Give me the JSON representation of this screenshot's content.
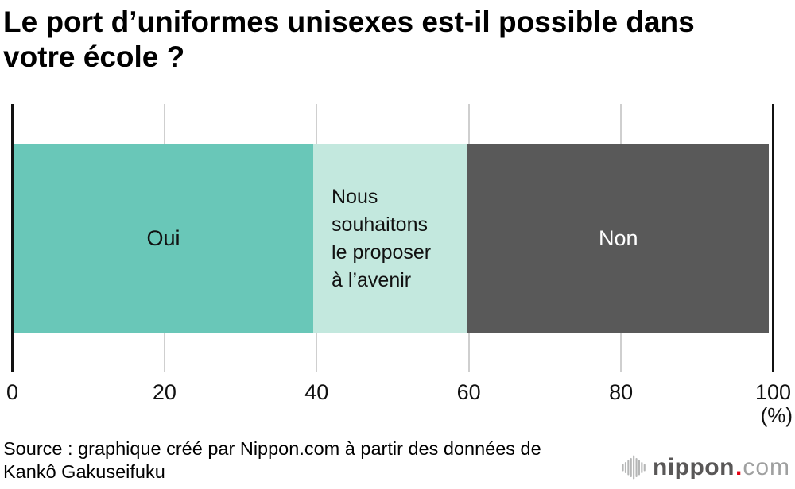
{
  "title_lines": {
    "line1": "Le port d’uniformes unisexes est-il possible dans",
    "line2": "votre école ?"
  },
  "chart_data": {
    "type": "bar",
    "orientation": "horizontal-stacked",
    "title": "Le port d’uniformes unisexes est-il possible dans votre école ?",
    "unit": "%",
    "xlim": [
      0,
      100
    ],
    "grid": true,
    "axis_color": "#111111",
    "grid_color": "#cfcfcf",
    "segments": [
      {
        "label": "Oui",
        "value": 39.4,
        "color": "#69c7b8",
        "text_color": "#111111"
      },
      {
        "label": "Nous souhaitons le proposer à l’avenir",
        "value": 20.3,
        "color": "#c3e8de",
        "text_color": "#111111",
        "label_lines": {
          "l1": "Nous",
          "l2": "souhaitons",
          "l3": "le proposer",
          "l4": "à l’avenir"
        }
      },
      {
        "label": "Non",
        "value": 39.6,
        "color": "#595959",
        "text_color": "#ffffff"
      }
    ],
    "x_tick_values": [
      0,
      20,
      40,
      60,
      80,
      100
    ],
    "x_ticks": {
      "t0": "0",
      "t1": "20",
      "t2": "40",
      "t3": "60",
      "t4": "80",
      "t5": "100"
    },
    "axis_unit_label": "(%)"
  },
  "source": {
    "line1": "Source : graphique créé par Nippon.com à partir des données de",
    "line2": "Kankô Gakuseifuku"
  },
  "logo": {
    "name": "nippon",
    "dot": ".",
    "tld": "com",
    "icon": "waveform-icon",
    "colors": {
      "name": "#595757",
      "dot": "#e60012",
      "tld": "#9fa0a0",
      "icon": "#b5b6b6"
    }
  }
}
